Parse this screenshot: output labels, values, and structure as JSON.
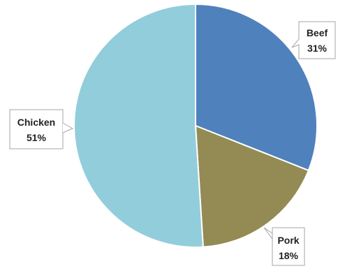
{
  "chart_data": {
    "type": "pie",
    "title": "",
    "slices": [
      {
        "label": "Beef",
        "value": 31,
        "value_label": "31%",
        "color": "#4F81BD"
      },
      {
        "label": "Pork",
        "value": 18,
        "value_label": "18%",
        "color": "#948A54"
      },
      {
        "label": "Chicken",
        "value": 51,
        "value_label": "51%",
        "color": "#92CDDC"
      }
    ],
    "start_angle_deg": 0,
    "direction": "clockwise",
    "legend": "none",
    "data_labels": "callouts with category name and percentage"
  }
}
